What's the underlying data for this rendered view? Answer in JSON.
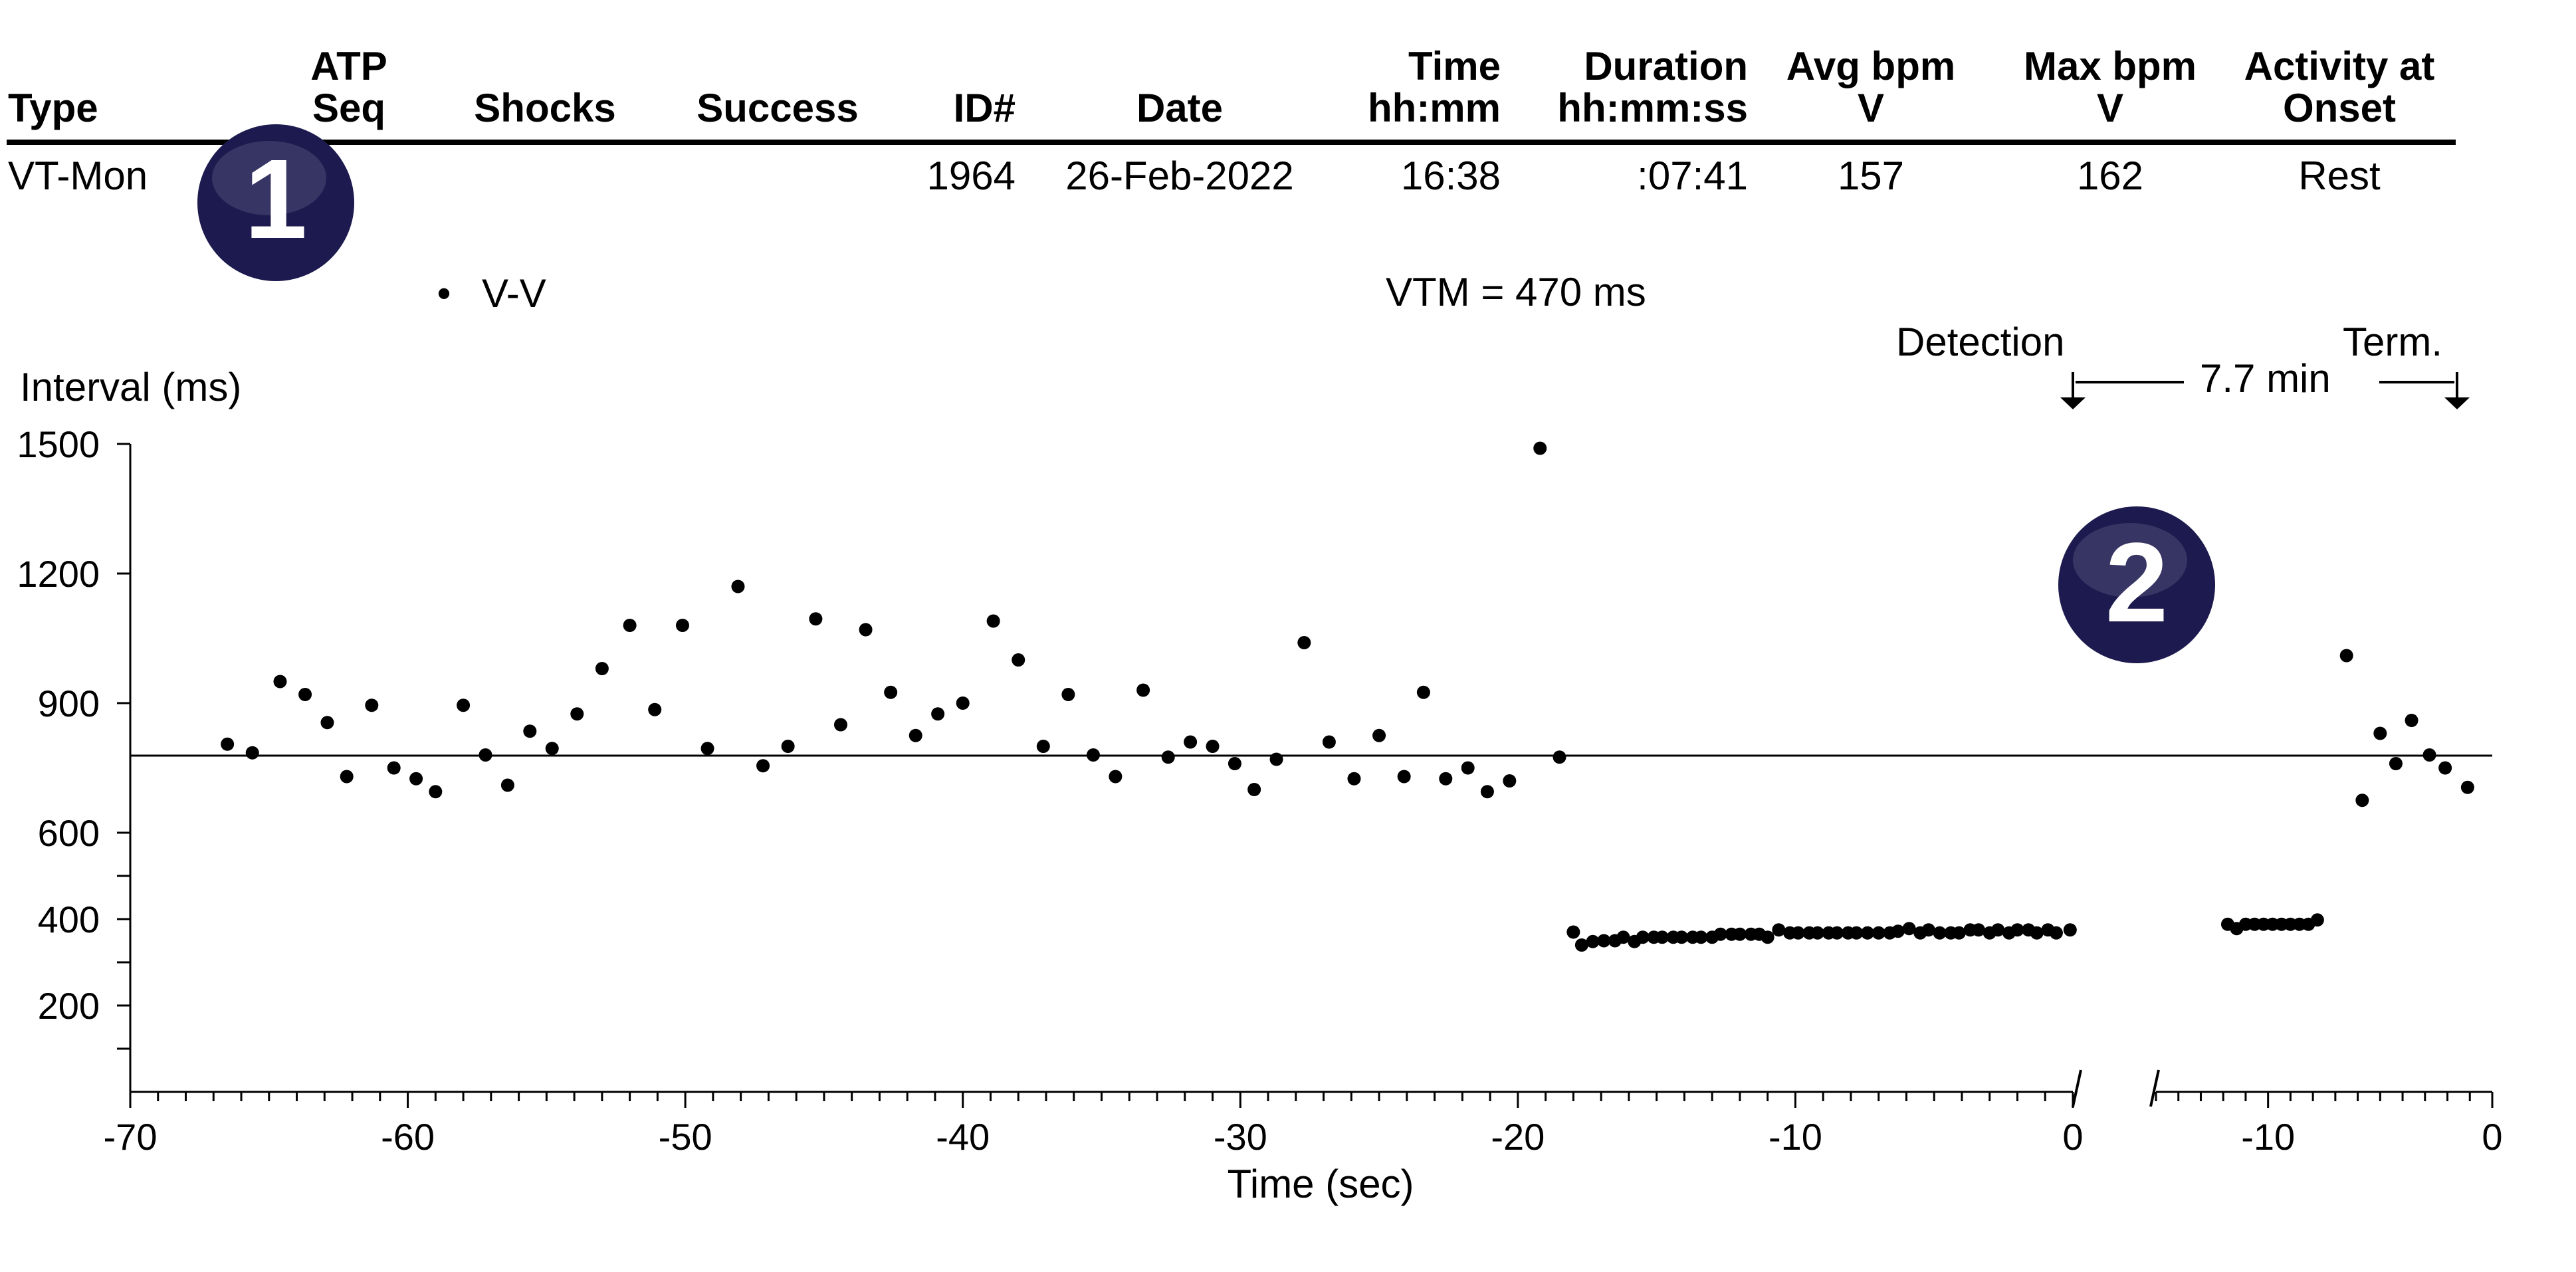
{
  "table": {
    "columns": [
      {
        "lines": [
          "",
          "Type"
        ]
      },
      {
        "lines": [
          "ATP",
          "Seq"
        ]
      },
      {
        "lines": [
          "",
          "Shocks"
        ]
      },
      {
        "lines": [
          "",
          "Success"
        ]
      },
      {
        "lines": [
          "",
          "ID#"
        ]
      },
      {
        "lines": [
          "",
          "Date"
        ]
      },
      {
        "lines": [
          "Time",
          "hh:mm"
        ]
      },
      {
        "lines": [
          "Duration",
          "hh:mm:ss"
        ]
      },
      {
        "lines": [
          "Avg bpm",
          "V"
        ]
      },
      {
        "lines": [
          "Max bpm",
          "V"
        ]
      },
      {
        "lines": [
          "Activity at",
          "Onset"
        ]
      }
    ],
    "row": [
      "VT-Mon",
      "",
      "",
      "",
      "1964",
      "26-Feb-2022",
      "16:38",
      ":07:41",
      "157",
      "162",
      "Rest"
    ]
  },
  "badges": [
    "1",
    "2"
  ],
  "colors": {
    "badge": "#1c1a4e",
    "badge_text": "#ffffff",
    "ink": "#000000"
  },
  "chart_data": {
    "type": "scatter",
    "legend": {
      "symbol": "•",
      "label": "V-V",
      "position": "top-left"
    },
    "vtm_text": "VTM = 470 ms",
    "vtm_value": 470,
    "ylabel": "Interval (ms)",
    "xlabel": "Time (sec)",
    "y_ticks": [
      1500,
      1200,
      900,
      600,
      400,
      200
    ],
    "y_minor_ticks": [
      500,
      300,
      100
    ],
    "ylim": [
      0,
      1500
    ],
    "grid": false,
    "panels": [
      {
        "name": "before-detection",
        "xlim": [
          -70,
          0
        ],
        "x_ticks": [
          -70,
          -60,
          -50,
          -40,
          -30,
          -20,
          -10,
          0
        ],
        "points": [
          [
            -66.5,
            805
          ],
          [
            -65.6,
            785
          ],
          [
            -64.6,
            950
          ],
          [
            -63.7,
            920
          ],
          [
            -62.9,
            855
          ],
          [
            -62.2,
            730
          ],
          [
            -61.3,
            895
          ],
          [
            -60.5,
            750
          ],
          [
            -59.7,
            725
          ],
          [
            -59.0,
            695
          ],
          [
            -58.0,
            895
          ],
          [
            -57.2,
            780
          ],
          [
            -56.4,
            710
          ],
          [
            -55.6,
            835
          ],
          [
            -54.8,
            795
          ],
          [
            -53.9,
            875
          ],
          [
            -53.0,
            980
          ],
          [
            -52.0,
            1080
          ],
          [
            -51.1,
            885
          ],
          [
            -50.1,
            1080
          ],
          [
            -49.2,
            795
          ],
          [
            -48.1,
            1170
          ],
          [
            -47.2,
            755
          ],
          [
            -46.3,
            800
          ],
          [
            -45.3,
            1095
          ],
          [
            -44.4,
            850
          ],
          [
            -43.5,
            1070
          ],
          [
            -42.6,
            925
          ],
          [
            -41.7,
            825
          ],
          [
            -40.9,
            875
          ],
          [
            -40.0,
            900
          ],
          [
            -38.9,
            1090
          ],
          [
            -38.0,
            1000
          ],
          [
            -37.1,
            800
          ],
          [
            -36.2,
            920
          ],
          [
            -35.3,
            780
          ],
          [
            -34.5,
            730
          ],
          [
            -33.5,
            930
          ],
          [
            -32.6,
            775
          ],
          [
            -31.8,
            810
          ],
          [
            -31.0,
            800
          ],
          [
            -30.2,
            760
          ],
          [
            -29.5,
            700
          ],
          [
            -28.7,
            770
          ],
          [
            -27.7,
            1040
          ],
          [
            -26.8,
            810
          ],
          [
            -25.9,
            725
          ],
          [
            -25.0,
            825
          ],
          [
            -24.1,
            730
          ],
          [
            -23.4,
            925
          ],
          [
            -22.6,
            725
          ],
          [
            -21.8,
            750
          ],
          [
            -21.1,
            695
          ],
          [
            -20.3,
            720
          ],
          [
            -19.2,
            1490
          ],
          [
            -18.5,
            775
          ],
          [
            -18.0,
            370
          ],
          [
            -17.7,
            340
          ],
          [
            -17.3,
            348
          ],
          [
            -16.9,
            350
          ],
          [
            -16.5,
            350
          ],
          [
            -16.2,
            358
          ],
          [
            -15.8,
            348
          ],
          [
            -15.5,
            358
          ],
          [
            -15.1,
            358
          ],
          [
            -14.8,
            358
          ],
          [
            -14.4,
            358
          ],
          [
            -14.1,
            358
          ],
          [
            -13.7,
            358
          ],
          [
            -13.4,
            358
          ],
          [
            -13.0,
            358
          ],
          [
            -12.7,
            365
          ],
          [
            -12.3,
            365
          ],
          [
            -12.0,
            365
          ],
          [
            -11.6,
            365
          ],
          [
            -11.3,
            365
          ],
          [
            -11.0,
            358
          ],
          [
            -10.6,
            375
          ],
          [
            -10.2,
            368
          ],
          [
            -9.9,
            368
          ],
          [
            -9.5,
            368
          ],
          [
            -9.2,
            368
          ],
          [
            -8.8,
            368
          ],
          [
            -8.5,
            368
          ],
          [
            -8.1,
            368
          ],
          [
            -7.8,
            368
          ],
          [
            -7.4,
            368
          ],
          [
            -7.0,
            368
          ],
          [
            -6.6,
            368
          ],
          [
            -6.3,
            372
          ],
          [
            -5.9,
            378
          ],
          [
            -5.5,
            368
          ],
          [
            -5.2,
            375
          ],
          [
            -4.8,
            368
          ],
          [
            -4.4,
            368
          ],
          [
            -4.1,
            368
          ],
          [
            -3.7,
            375
          ],
          [
            -3.4,
            375
          ],
          [
            -3.0,
            368
          ],
          [
            -2.7,
            375
          ],
          [
            -2.3,
            368
          ],
          [
            -2.0,
            375
          ],
          [
            -1.6,
            375
          ],
          [
            -1.3,
            368
          ],
          [
            -0.9,
            375
          ],
          [
            -0.6,
            368
          ],
          [
            -0.1,
            375
          ]
        ]
      },
      {
        "name": "before-termination",
        "xlim": [
          -15,
          0
        ],
        "x_ticks": [
          -10,
          0
        ],
        "points": [
          [
            -11.8,
            388
          ],
          [
            -11.4,
            378
          ],
          [
            -11.0,
            388
          ],
          [
            -10.6,
            388
          ],
          [
            -10.2,
            388
          ],
          [
            -9.8,
            388
          ],
          [
            -9.4,
            388
          ],
          [
            -9.0,
            388
          ],
          [
            -8.6,
            388
          ],
          [
            -8.2,
            388
          ],
          [
            -7.8,
            398
          ],
          [
            -6.5,
            1010
          ],
          [
            -5.8,
            675
          ],
          [
            -5.0,
            830
          ],
          [
            -4.3,
            760
          ],
          [
            -3.6,
            860
          ],
          [
            -2.8,
            780
          ],
          [
            -2.1,
            750
          ],
          [
            -1.1,
            705
          ]
        ]
      }
    ],
    "annotations": {
      "detection": "Detection",
      "termination": "Term.",
      "gap": "7.7 min"
    }
  }
}
